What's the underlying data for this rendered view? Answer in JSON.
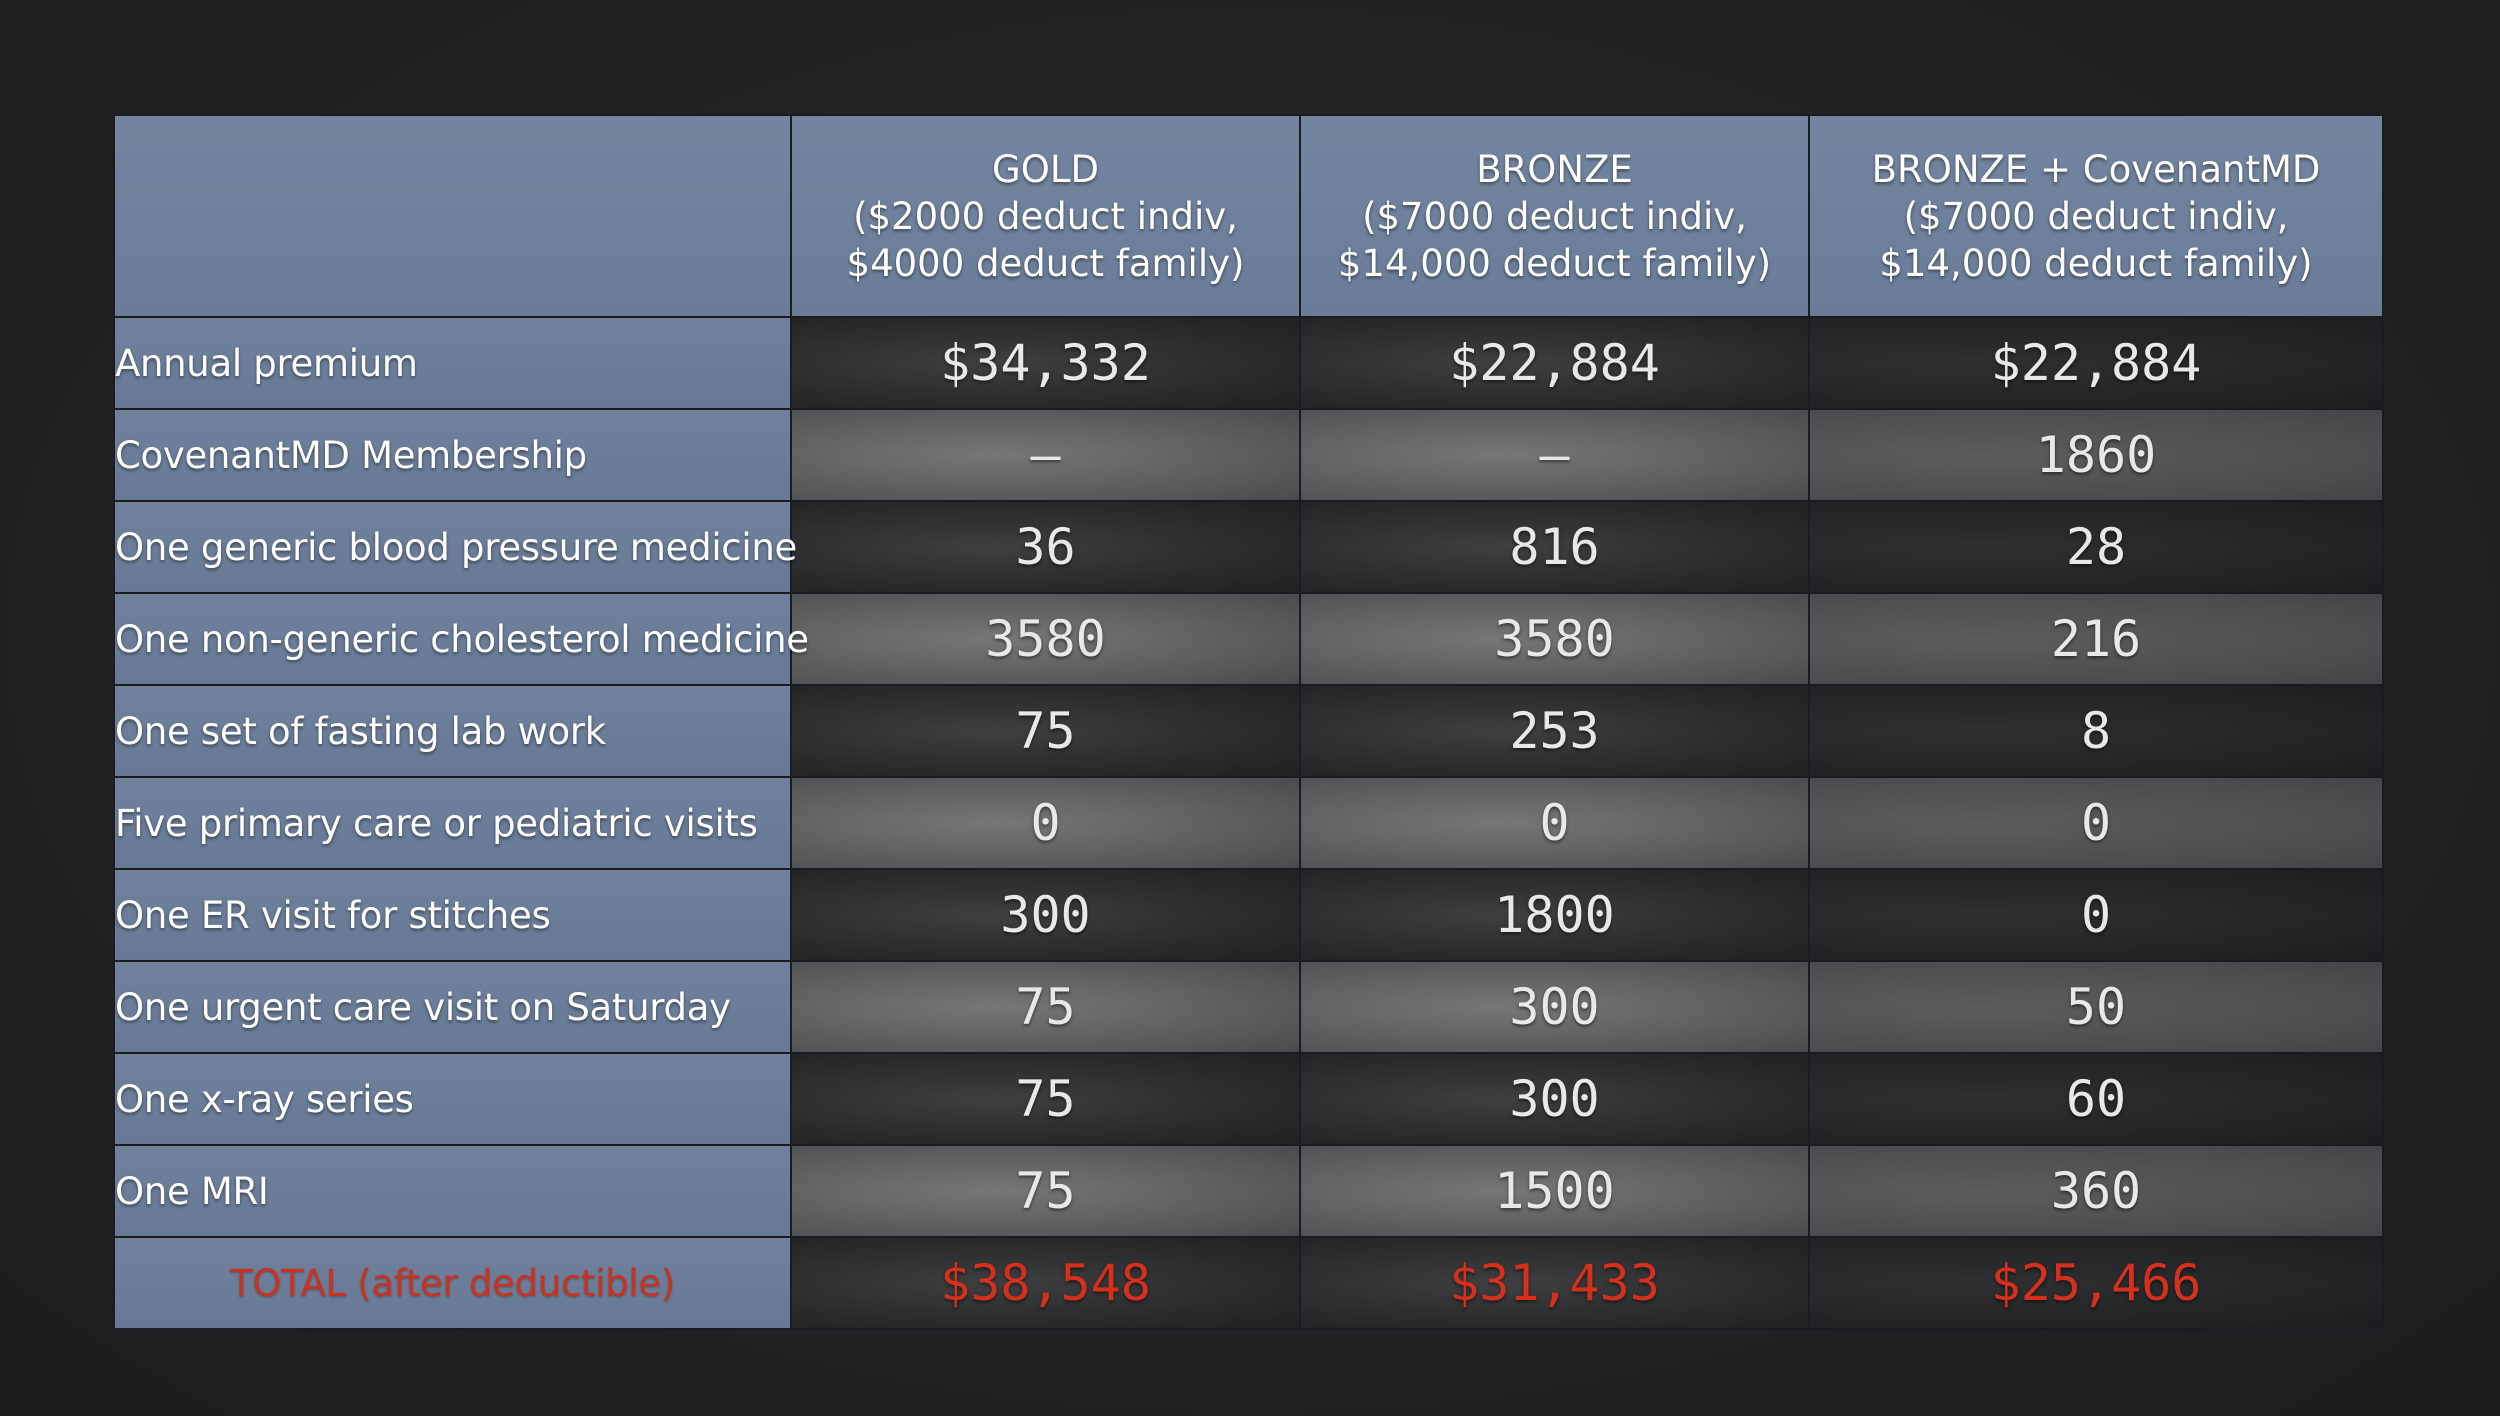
{
  "table": {
    "columns": [
      {
        "name": "GOLD",
        "detail_line1": "($2000 deduct indiv,",
        "detail_line2": "$4000 deduct family)"
      },
      {
        "name": "BRONZE",
        "detail_line1": "($7000 deduct indiv,",
        "detail_line2": "$14,000 deduct family)"
      },
      {
        "name": "BRONZE + CovenantMD",
        "detail_line1": "($7000 deduct indiv,",
        "detail_line2": "$14,000 deduct family)"
      }
    ],
    "rows": [
      {
        "label": "Annual premium",
        "values": [
          "$34,332",
          "$22,884",
          "$22,884"
        ]
      },
      {
        "label": "CovenantMD Membership",
        "values": [
          "—",
          "—",
          "1860"
        ]
      },
      {
        "label": "One generic blood pressure medicine",
        "values": [
          "36",
          "816",
          "28"
        ]
      },
      {
        "label": "One non-generic cholesterol medicine",
        "values": [
          "3580",
          "3580",
          "216"
        ]
      },
      {
        "label": "One set of fasting lab work",
        "values": [
          "75",
          "253",
          "8"
        ]
      },
      {
        "label": "Five primary care or pediatric visits",
        "values": [
          "0",
          "0",
          "0"
        ]
      },
      {
        "label": "One ER visit for stitches",
        "values": [
          "300",
          "1800",
          "0"
        ]
      },
      {
        "label": "One urgent care visit on Saturday",
        "values": [
          "75",
          "300",
          "50"
        ]
      },
      {
        "label": "One x-ray series",
        "values": [
          "75",
          "300",
          "60"
        ]
      },
      {
        "label": "One MRI",
        "values": [
          "75",
          "1500",
          "360"
        ]
      }
    ],
    "total": {
      "label": "TOTAL (after deductible)",
      "values": [
        "$38,548",
        "$31,433",
        "$25,466"
      ]
    }
  },
  "colors": {
    "header_blue": "#6a7d9c",
    "total_red": "#d4301c",
    "background": "#222324"
  }
}
